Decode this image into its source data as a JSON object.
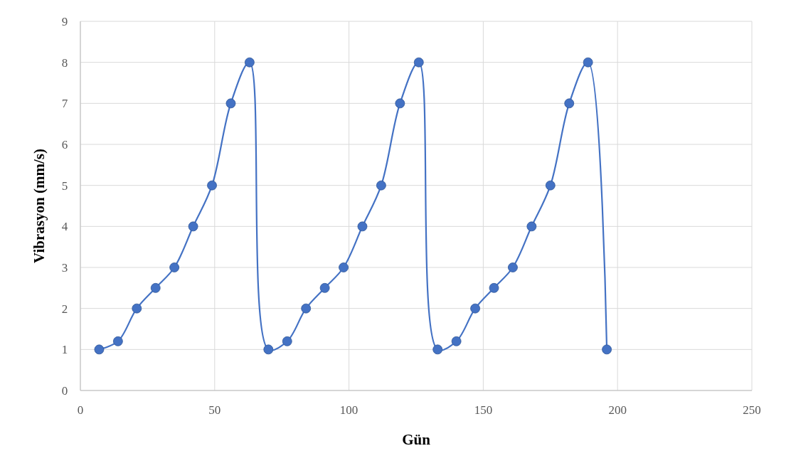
{
  "chart_data": {
    "type": "line",
    "xlabel": "Gün",
    "ylabel": "Vibrasyon (mm/s)",
    "x": [
      7,
      14,
      21,
      28,
      35,
      42,
      49,
      56,
      63,
      70,
      77,
      84,
      91,
      98,
      105,
      112,
      119,
      126,
      133,
      140,
      147,
      154,
      161,
      168,
      175,
      182,
      189,
      196
    ],
    "series": [
      {
        "color": "#4472c4",
        "values": [
          1,
          1.2,
          2,
          2.5,
          3,
          4,
          5,
          7,
          8,
          1,
          1.2,
          2,
          2.5,
          3,
          4,
          5,
          7,
          8,
          1,
          1.2,
          2,
          2.5,
          3,
          4,
          5,
          7,
          8,
          1
        ]
      }
    ],
    "xlim": [
      0,
      250
    ],
    "xticks": [
      0,
      50,
      100,
      150,
      200,
      250
    ],
    "ylim": [
      0,
      9
    ],
    "yticks": [
      0,
      1,
      2,
      3,
      4,
      5,
      6,
      7,
      8,
      9
    ],
    "grid": true,
    "marker": "circle",
    "line_style": "solid"
  }
}
